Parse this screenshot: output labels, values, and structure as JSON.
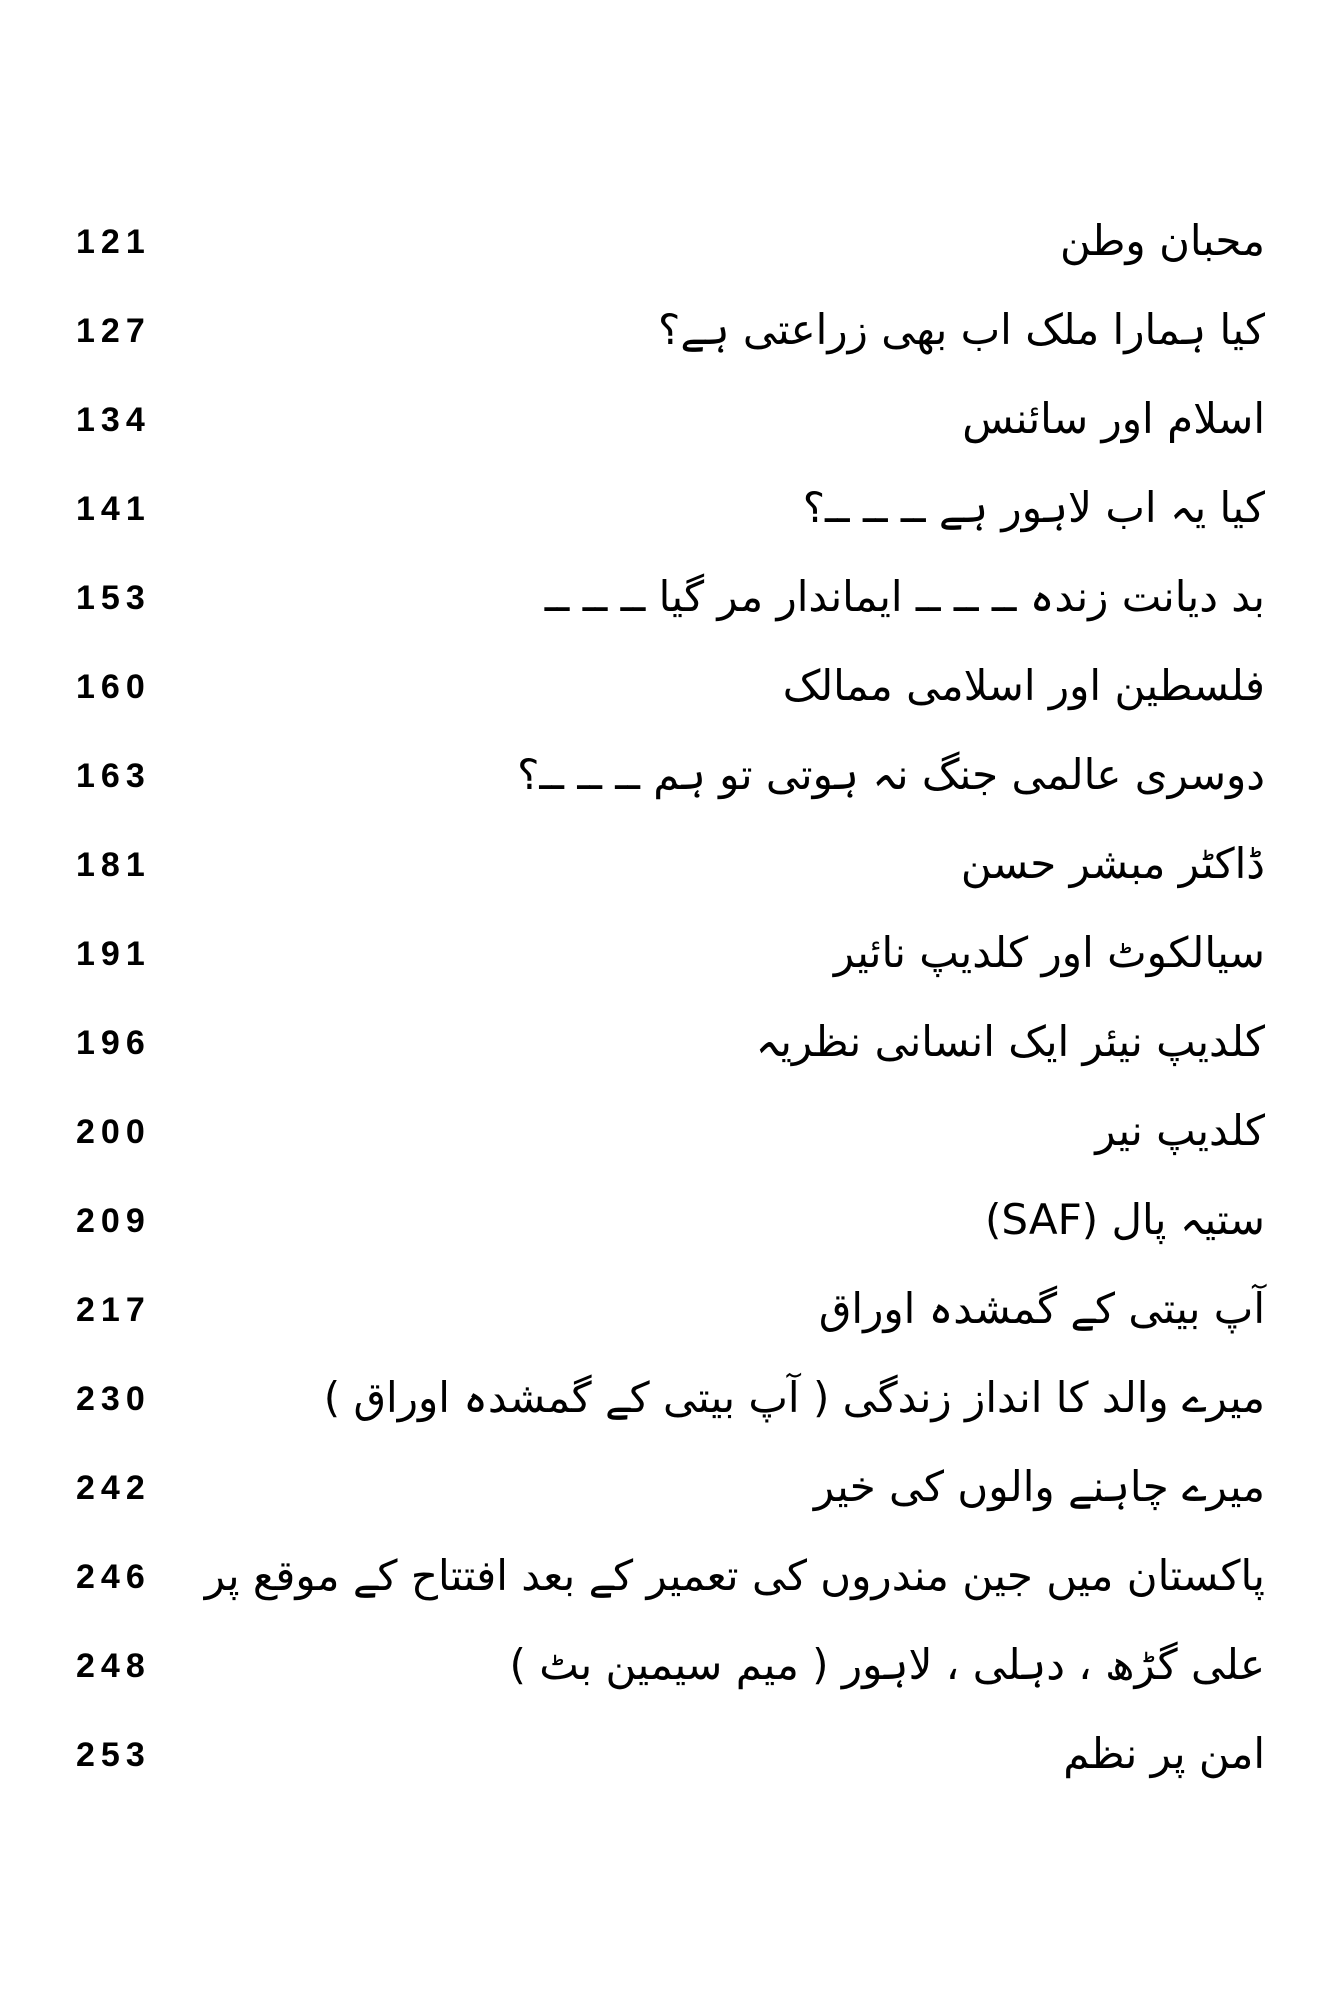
{
  "page": {
    "background_color": "#ffffff",
    "text_color": "#000000",
    "kind": "table-of-contents"
  },
  "toc": {
    "entries": [
      {
        "page": "121",
        "title": "محبان وطن"
      },
      {
        "page": "127",
        "title": "کیا ہمارا ملک اب بھی زراعتی ہے؟"
      },
      {
        "page": "134",
        "title": "اسلام اور سائنس"
      },
      {
        "page": "141",
        "title": "کیا یہ اب لاہور ہے ــ ــ ــ؟"
      },
      {
        "page": "153",
        "title": "بد دیانت زندہ ــ ــ ــ ایماندار مر گیا ــ ــ ــ"
      },
      {
        "page": "160",
        "title": "فلسطین اور اسلامی ممالک"
      },
      {
        "page": "163",
        "title": "دوسری عالمی جنگ نہ ہوتی تو ہم ــ ــ ــ؟"
      },
      {
        "page": "181",
        "title": "ڈاکٹر مبشر حسن"
      },
      {
        "page": "191",
        "title": "سیالکوٹ اور کلدیپ نائیر"
      },
      {
        "page": "196",
        "title": "کلدیپ نیئر ایک انسانی نظریہ"
      },
      {
        "page": "200",
        "title": "کلدیپ نیر"
      },
      {
        "page": "209",
        "title": "ستیہ پال (SAF)"
      },
      {
        "page": "217",
        "title": "آپ بیتی کے گمشدہ اوراق"
      },
      {
        "page": "230",
        "title": "میرے والد کا انداز زندگی ( آپ بیتی کے گمشدہ اوراق )"
      },
      {
        "page": "242",
        "title": "میرے چاہنے والوں کی خیر"
      },
      {
        "page": "246",
        "title": "پاکستان میں جین مندروں کی تعمیر کے بعد افتتاح کے موقع پر"
      },
      {
        "page": "248",
        "title": "علی گڑھ ، دہلی ، لاہور ( میم سیمین بٹ )"
      },
      {
        "page": "253",
        "title": "امن پر نظم"
      }
    ]
  }
}
